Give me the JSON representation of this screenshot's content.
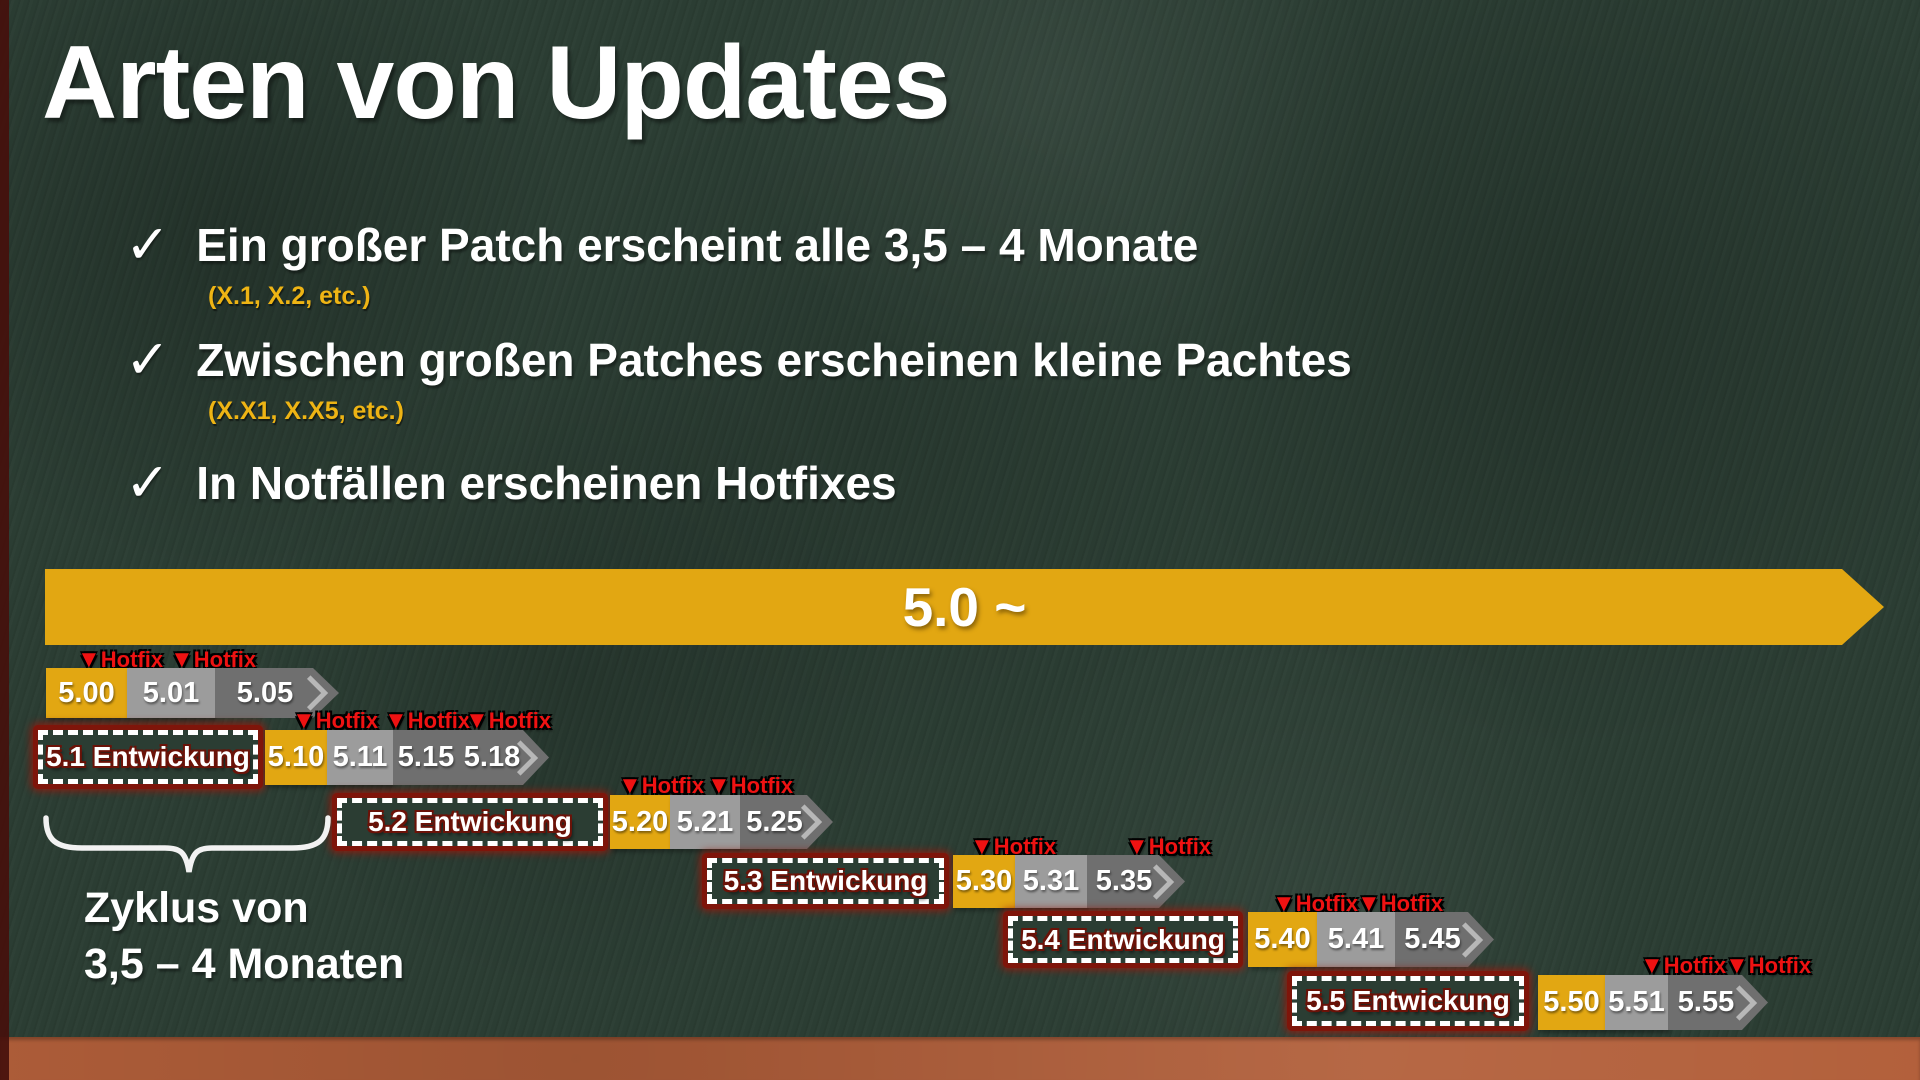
{
  "title": "Arten von Updates",
  "bullets": [
    {
      "check": "✓",
      "text": "Ein großer Patch erscheint alle 3,5 – 4 Monate",
      "sub": "(X.1, X.2, etc.)"
    },
    {
      "check": "✓",
      "text": "Zwischen großen Patches erscheinen kleine Pachtes",
      "sub": "(X.X1, X.X5, etc.)"
    },
    {
      "check": "✓",
      "text": "In Notfällen erscheinen Hotfixes",
      "sub": ""
    }
  ],
  "banner": {
    "label": "5.0 ~"
  },
  "hotfix_marker": {
    "triangle": "▼",
    "label": "Hotfix"
  },
  "timeline_rows": [
    {
      "dev_box": "",
      "hotfix_count": 2,
      "segments": [
        {
          "tone": "gold",
          "labels": [
            "5.00"
          ]
        },
        {
          "tone": "gray",
          "labels": [
            "5.01"
          ]
        },
        {
          "tone": "darkgray",
          "labels": [
            "5.05"
          ]
        }
      ]
    },
    {
      "dev_box": "5.1 Entwickung",
      "hotfix_count": 3,
      "segments": [
        {
          "tone": "gold",
          "labels": [
            "5.10"
          ]
        },
        {
          "tone": "gray",
          "labels": [
            "5.11"
          ]
        },
        {
          "tone": "darkgray",
          "labels": [
            "5.15",
            "5.18"
          ]
        }
      ]
    },
    {
      "dev_box": "5.2 Entwickung",
      "hotfix_count": 2,
      "segments": [
        {
          "tone": "gold",
          "labels": [
            "5.20"
          ]
        },
        {
          "tone": "gray",
          "labels": [
            "5.21"
          ]
        },
        {
          "tone": "darkgray",
          "labels": [
            "5.25"
          ]
        }
      ]
    },
    {
      "dev_box": "5.3 Entwickung",
      "hotfix_count": 2,
      "segments": [
        {
          "tone": "gold",
          "labels": [
            "5.30"
          ]
        },
        {
          "tone": "gray",
          "labels": [
            "5.31"
          ]
        },
        {
          "tone": "darkgray",
          "labels": [
            "5.35"
          ]
        }
      ]
    },
    {
      "dev_box": "5.4 Entwickung",
      "hotfix_count": 2,
      "segments": [
        {
          "tone": "gold",
          "labels": [
            "5.40"
          ]
        },
        {
          "tone": "gray",
          "labels": [
            "5.41"
          ]
        },
        {
          "tone": "darkgray",
          "labels": [
            "5.45"
          ]
        }
      ]
    },
    {
      "dev_box": "5.5 Entwickung",
      "hotfix_count": 2,
      "segments": [
        {
          "tone": "gold",
          "labels": [
            "5.50"
          ]
        },
        {
          "tone": "gray",
          "labels": [
            "5.51"
          ]
        },
        {
          "tone": "darkgray",
          "labels": [
            "5.55"
          ]
        }
      ]
    }
  ],
  "cycle_label": {
    "line1": "Zyklus von",
    "line2": "3,5 – 4 Monaten"
  },
  "colors": {
    "chalkboard_green": "#2b3d33",
    "gold": "#e2a712",
    "light_gray": "#9c9c9c",
    "dark_gray": "#6f6f6f",
    "hotfix_red": "#ee1212",
    "dev_box_red": "#7e150a",
    "sub_yellow": "#eeb414",
    "tray_brown": "#b25f3a",
    "edge_maroon": "#45100c"
  }
}
